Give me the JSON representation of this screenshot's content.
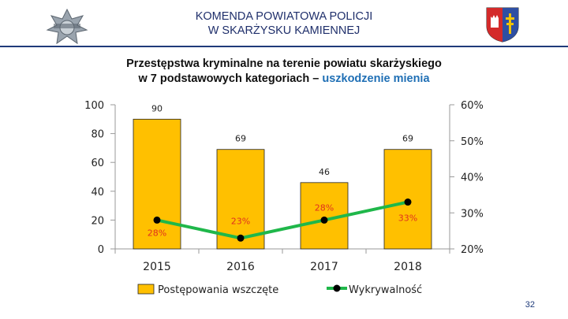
{
  "header": {
    "title_line1": "KOMENDA POWIATOWA POLICJI",
    "title_line2": "W SKARŻYSKU KAMIENNEJ"
  },
  "subtitle": {
    "line1": "Przestępstwa kryminalne na terenie powiatu skarżyskiego",
    "line2_prefix": "w 7 podstawowych kategoriach – ",
    "line2_accent": "uszkodzenie mienia"
  },
  "page_number": "32",
  "colors": {
    "bar_fill": "#FFC000",
    "line": "#1FB74A",
    "marker": "#000000",
    "line_label": "#E0301E",
    "header": "#1F3B7A"
  },
  "chart_data": {
    "type": "bar",
    "categories": [
      "2015",
      "2016",
      "2017",
      "2018"
    ],
    "series": [
      {
        "name": "Postępowania wszczęte",
        "type": "bar",
        "values": [
          90,
          69,
          46,
          69
        ],
        "labels": [
          "90",
          "69",
          "46",
          "69"
        ],
        "axis": "left"
      },
      {
        "name": "Wykrywalność",
        "type": "line",
        "values": [
          28,
          23,
          28,
          33
        ],
        "labels": [
          "28%",
          "23%",
          "28%",
          "33%"
        ],
        "axis": "right"
      }
    ],
    "y_left": {
      "min": 0,
      "max": 100,
      "ticks": [
        "0",
        "20",
        "40",
        "60",
        "80",
        "100"
      ]
    },
    "y_right": {
      "min": 20,
      "max": 60,
      "ticks": [
        "20%",
        "30%",
        "40%",
        "50%",
        "60%"
      ]
    },
    "legend": [
      "Postępowania wszczęte",
      "Wykrywalność"
    ],
    "legend_position": "bottom"
  }
}
